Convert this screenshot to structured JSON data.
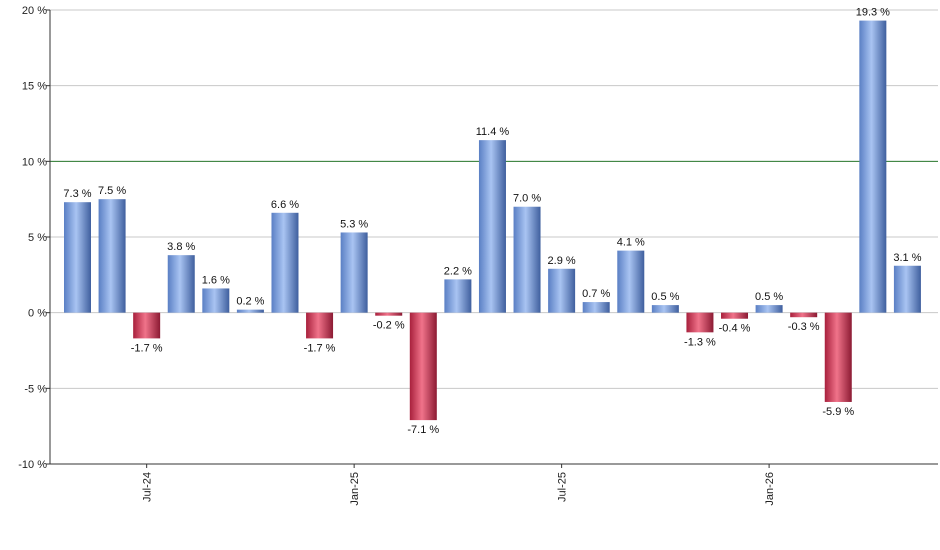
{
  "chart_data": {
    "type": "bar",
    "title": "",
    "xlabel": "",
    "ylabel": "",
    "ylim": [
      -10,
      20
    ],
    "y_ticks": [
      -10,
      -5,
      0,
      5,
      10,
      15,
      20
    ],
    "y_tick_labels": [
      "-10 %",
      "-5 %",
      "0 %",
      "5 %",
      "10 %",
      "15 %",
      "20 %"
    ],
    "x_tick_labels": [
      {
        "label": "Jul-24",
        "index": 2
      },
      {
        "label": "Jan-25",
        "index": 8
      },
      {
        "label": "Jul-25",
        "index": 14
      },
      {
        "label": "Jan-26",
        "index": 20
      }
    ],
    "reference_line": {
      "value": 10,
      "color": "#2e7d32"
    },
    "grid": true,
    "legend": "none",
    "colors": {
      "positive": "#6f98dc",
      "negative": "#c8304e"
    },
    "values": [
      7.3,
      7.5,
      -1.7,
      3.8,
      1.6,
      0.2,
      6.6,
      -1.7,
      5.3,
      -0.2,
      -7.1,
      2.2,
      11.4,
      7.0,
      2.9,
      0.7,
      4.1,
      0.5,
      -1.3,
      -0.4,
      0.5,
      -0.3,
      -5.9,
      19.3,
      3.1
    ],
    "data_labels": [
      "7.3 %",
      "7.5 %",
      "-1.7 %",
      "3.8 %",
      "1.6 %",
      "0.2 %",
      "6.6 %",
      "-1.7 %",
      "5.3 %",
      "-0.2 %",
      "-7.1 %",
      "2.2 %",
      "11.4 %",
      "7.0 %",
      "2.9 %",
      "0.7 %",
      "4.1 %",
      "0.5 %",
      "-1.3 %",
      "-0.4 %",
      "0.5 %",
      "-0.3 %",
      "-5.9 %",
      "19.3 %",
      "3.1 %"
    ]
  }
}
